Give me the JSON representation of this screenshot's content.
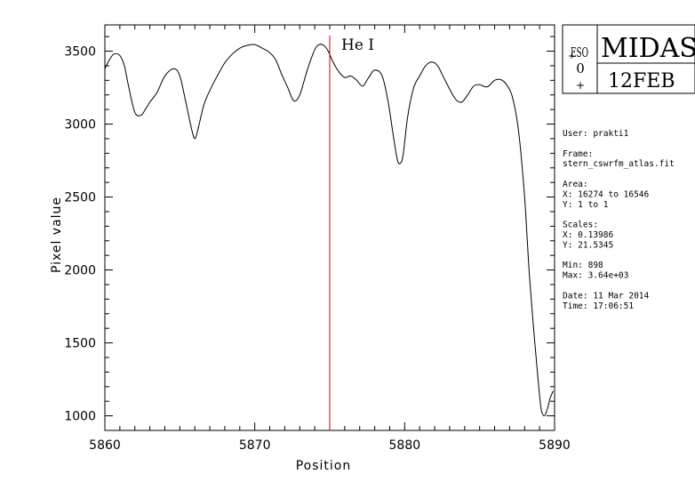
{
  "chart_data": {
    "type": "line",
    "xlabel": "Position",
    "ylabel": "Pixel value",
    "xlim": [
      5860,
      5890
    ],
    "ylim": [
      900,
      3680
    ],
    "x_ticks": [
      5860,
      5870,
      5880,
      5890
    ],
    "x_tick_labels": [
      "5860",
      "5870",
      "5880",
      "5890"
    ],
    "y_ticks": [
      1000,
      1500,
      2000,
      2500,
      3000,
      3500
    ],
    "y_tick_labels": [
      "1000",
      "1500",
      "2000",
      "2500",
      "3000",
      "3500"
    ],
    "grid": false,
    "series": [
      {
        "color": "#000000",
        "x": [
          5860.0,
          5860.3,
          5860.6,
          5861.0,
          5861.3,
          5861.6,
          5862.0,
          5862.4,
          5862.7,
          5863.0,
          5863.5,
          5864.0,
          5864.6,
          5865.0,
          5865.4,
          5865.8,
          5866.0,
          5866.2,
          5866.6,
          5867.0,
          5867.5,
          5868.0,
          5868.5,
          5869.0,
          5869.5,
          5870.0,
          5870.5,
          5871.0,
          5871.4,
          5871.8,
          5872.2,
          5872.6,
          5873.0,
          5873.5,
          5874.0,
          5874.3,
          5874.6,
          5874.9,
          5875.2,
          5875.6,
          5876.0,
          5876.4,
          5876.8,
          5877.2,
          5877.6,
          5878.0,
          5878.5,
          5878.9,
          5879.2,
          5879.5,
          5879.7,
          5879.9,
          5880.2,
          5880.6,
          5881.0,
          5881.4,
          5881.8,
          5882.2,
          5882.6,
          5883.0,
          5883.4,
          5883.8,
          5884.2,
          5884.6,
          5885.0,
          5885.5,
          5886.0,
          5886.4,
          5886.8,
          5887.2,
          5887.6,
          5888.0,
          5888.3,
          5888.6,
          5888.9,
          5889.1,
          5889.3,
          5889.5,
          5889.7,
          5889.9
        ],
        "y": [
          3380,
          3440,
          3480,
          3470,
          3400,
          3250,
          3080,
          3060,
          3100,
          3150,
          3220,
          3330,
          3380,
          3330,
          3150,
          2960,
          2900,
          2960,
          3130,
          3230,
          3330,
          3420,
          3480,
          3520,
          3540,
          3545,
          3520,
          3490,
          3440,
          3340,
          3250,
          3160,
          3200,
          3370,
          3510,
          3545,
          3540,
          3500,
          3430,
          3360,
          3320,
          3330,
          3300,
          3260,
          3320,
          3370,
          3330,
          3150,
          2950,
          2760,
          2730,
          2790,
          3050,
          3250,
          3330,
          3400,
          3425,
          3400,
          3320,
          3240,
          3170,
          3150,
          3200,
          3260,
          3270,
          3255,
          3300,
          3305,
          3270,
          3180,
          2950,
          2500,
          2000,
          1600,
          1250,
          1050,
          1000,
          1040,
          1120,
          1170
        ]
      }
    ],
    "annotations": [
      {
        "label": "He I",
        "x": 5875,
        "color": "#cc0000"
      }
    ]
  },
  "logo": {
    "text": "MIDAS",
    "badge": "ESO",
    "date": "12FEB"
  },
  "info_panel": {
    "lines": [
      "User: prakti1",
      "",
      "Frame:",
      "stern_cswrfm_atlas.fit",
      "",
      "Area:",
      "X: 16274 to 16546",
      "Y: 1 to 1",
      "",
      "Scales:",
      "X: 0.13986",
      "Y: 21.5345",
      "",
      "Min: 898",
      "Max: 3.64e+03",
      "",
      "Date: 11 Mar 2014",
      "Time: 17:06:51"
    ]
  }
}
